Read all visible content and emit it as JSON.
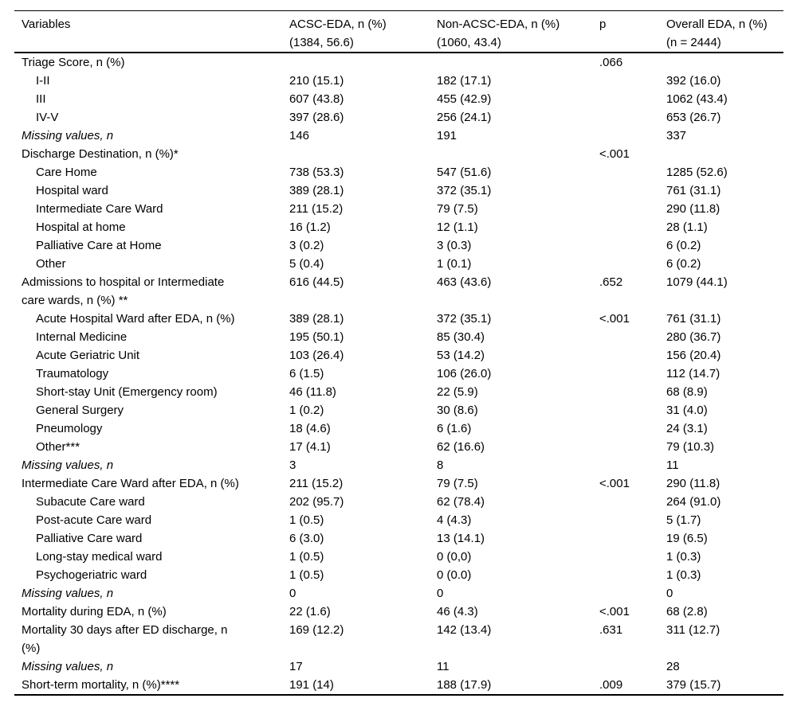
{
  "colors": {
    "background": "#ffffff",
    "text": "#000000",
    "rule": "#000000"
  },
  "table": {
    "columns": [
      {
        "label": "Variables"
      },
      {
        "label": "ACSC-EDA, n (%)\n(1384, 56.6)"
      },
      {
        "label": "Non-ACSC-EDA, n (%)\n(1060, 43.4)"
      },
      {
        "label": "p"
      },
      {
        "label": "Overall EDA, n (%)\n(n = 2444)"
      }
    ],
    "rows": [
      {
        "label": "Triage Score, n (%)",
        "indent": 0,
        "italic": false,
        "acsc": "",
        "non_acsc": "",
        "p": ".066",
        "overall": ""
      },
      {
        "label": "I-II",
        "indent": 1,
        "italic": false,
        "acsc": "210 (15.1)",
        "non_acsc": "182 (17.1)",
        "p": "",
        "overall": "392 (16.0)"
      },
      {
        "label": "III",
        "indent": 1,
        "italic": false,
        "acsc": "607 (43.8)",
        "non_acsc": "455 (42.9)",
        "p": "",
        "overall": "1062 (43.4)"
      },
      {
        "label": "IV-V",
        "indent": 1,
        "italic": false,
        "acsc": "397 (28.6)",
        "non_acsc": "256 (24.1)",
        "p": "",
        "overall": "653 (26.7)"
      },
      {
        "label": "Missing values, n",
        "indent": 0,
        "italic": true,
        "acsc": "146",
        "non_acsc": "191",
        "p": "",
        "overall": "337"
      },
      {
        "label": "Discharge Destination, n (%)*",
        "indent": 0,
        "italic": false,
        "acsc": "",
        "non_acsc": "",
        "p": "<.001",
        "overall": ""
      },
      {
        "label": "Care Home",
        "indent": 1,
        "italic": false,
        "acsc": "738 (53.3)",
        "non_acsc": "547 (51.6)",
        "p": "",
        "overall": "1285 (52.6)"
      },
      {
        "label": "Hospital ward",
        "indent": 1,
        "italic": false,
        "acsc": "389 (28.1)",
        "non_acsc": "372 (35.1)",
        "p": "",
        "overall": "761 (31.1)"
      },
      {
        "label": "Intermediate Care Ward",
        "indent": 1,
        "italic": false,
        "acsc": "211 (15.2)",
        "non_acsc": "79 (7.5)",
        "p": "",
        "overall": "290 (11.8)"
      },
      {
        "label": "Hospital at home",
        "indent": 1,
        "italic": false,
        "acsc": "16 (1.2)",
        "non_acsc": "12 (1.1)",
        "p": "",
        "overall": "28 (1.1)"
      },
      {
        "label": "Palliative Care at Home",
        "indent": 1,
        "italic": false,
        "acsc": "3 (0.2)",
        "non_acsc": "3 (0.3)",
        "p": "",
        "overall": "6 (0.2)"
      },
      {
        "label": "Other",
        "indent": 1,
        "italic": false,
        "acsc": "5 (0.4)",
        "non_acsc": "1 (0.1)",
        "p": "",
        "overall": "6 (0.2)"
      },
      {
        "label": "Admissions to hospital or Intermediate\ncare wards, n (%) **",
        "indent": 0,
        "italic": false,
        "acsc": "616 (44.5)",
        "non_acsc": "463 (43.6)",
        "p": ".652",
        "overall": "1079 (44.1)"
      },
      {
        "label": "Acute Hospital Ward after EDA, n (%)",
        "indent": 1,
        "italic": false,
        "acsc": "389 (28.1)",
        "non_acsc": "372 (35.1)",
        "p": "<.001",
        "overall": "761 (31.1)"
      },
      {
        "label": "Internal Medicine",
        "indent": 1,
        "italic": false,
        "acsc": "195 (50.1)",
        "non_acsc": "85 (30.4)",
        "p": "",
        "overall": "280 (36.7)"
      },
      {
        "label": "Acute Geriatric Unit",
        "indent": 1,
        "italic": false,
        "acsc": "103 (26.4)",
        "non_acsc": "53 (14.2)",
        "p": "",
        "overall": "156 (20.4)"
      },
      {
        "label": "Traumatology",
        "indent": 1,
        "italic": false,
        "acsc": "6 (1.5)",
        "non_acsc": "106 (26.0)",
        "p": "",
        "overall": "112 (14.7)"
      },
      {
        "label": "Short-stay Unit (Emergency room)",
        "indent": 1,
        "italic": false,
        "acsc": "46 (11.8)",
        "non_acsc": "22 (5.9)",
        "p": "",
        "overall": "68 (8.9)"
      },
      {
        "label": "General Surgery",
        "indent": 1,
        "italic": false,
        "acsc": "1 (0.2)",
        "non_acsc": "30 (8.6)",
        "p": "",
        "overall": "31 (4.0)"
      },
      {
        "label": "Pneumology",
        "indent": 1,
        "italic": false,
        "acsc": "18 (4.6)",
        "non_acsc": "6 (1.6)",
        "p": "",
        "overall": "24 (3.1)"
      },
      {
        "label": "Other***",
        "indent": 1,
        "italic": false,
        "acsc": "17 (4.1)",
        "non_acsc": "62 (16.6)",
        "p": "",
        "overall": "79 (10.3)"
      },
      {
        "label": "Missing values, n",
        "indent": 0,
        "italic": true,
        "acsc": "3",
        "non_acsc": "8",
        "p": "",
        "overall": "11"
      },
      {
        "label": "Intermediate Care Ward after EDA, n (%)",
        "indent": 0,
        "italic": false,
        "acsc": "211 (15.2)",
        "non_acsc": "79 (7.5)",
        "p": "<.001",
        "overall": "290 (11.8)"
      },
      {
        "label": "Subacute Care ward",
        "indent": 1,
        "italic": false,
        "acsc": "202 (95.7)",
        "non_acsc": "62 (78.4)",
        "p": "",
        "overall": "264 (91.0)"
      },
      {
        "label": "Post-acute Care ward",
        "indent": 1,
        "italic": false,
        "acsc": "1 (0.5)",
        "non_acsc": "4 (4.3)",
        "p": "",
        "overall": "5 (1.7)"
      },
      {
        "label": "Palliative Care ward",
        "indent": 1,
        "italic": false,
        "acsc": "6 (3.0)",
        "non_acsc": "13 (14.1)",
        "p": "",
        "overall": "19 (6.5)"
      },
      {
        "label": "Long-stay medical ward",
        "indent": 1,
        "italic": false,
        "acsc": "1 (0.5)",
        "non_acsc": "0 (0,0)",
        "p": "",
        "overall": "1 (0.3)"
      },
      {
        "label": "Psychogeriatric ward",
        "indent": 1,
        "italic": false,
        "acsc": "1 (0.5)",
        "non_acsc": "0 (0.0)",
        "p": "",
        "overall": "1 (0.3)"
      },
      {
        "label": "Missing values, n",
        "indent": 0,
        "italic": true,
        "acsc": "0",
        "non_acsc": "0",
        "p": "",
        "overall": "0"
      },
      {
        "label": "Mortality during EDA, n (%)",
        "indent": 0,
        "italic": false,
        "acsc": "22 (1.6)",
        "non_acsc": "46 (4.3)",
        "p": "<.001",
        "overall": "68 (2.8)"
      },
      {
        "label": "Mortality 30 days after ED discharge, n\n(%)",
        "indent": 0,
        "italic": false,
        "acsc": "169 (12.2)",
        "non_acsc": "142 (13.4)",
        "p": ".631",
        "overall": "311 (12.7)"
      },
      {
        "label": "Missing values, n",
        "indent": 0,
        "italic": true,
        "acsc": "17",
        "non_acsc": "11",
        "p": "",
        "overall": "28"
      },
      {
        "label": "Short-term mortality, n (%)****",
        "indent": 0,
        "italic": false,
        "acsc": "191 (14)",
        "non_acsc": "188 (17.9)",
        "p": ".009",
        "overall": "379 (15.7)"
      }
    ]
  }
}
